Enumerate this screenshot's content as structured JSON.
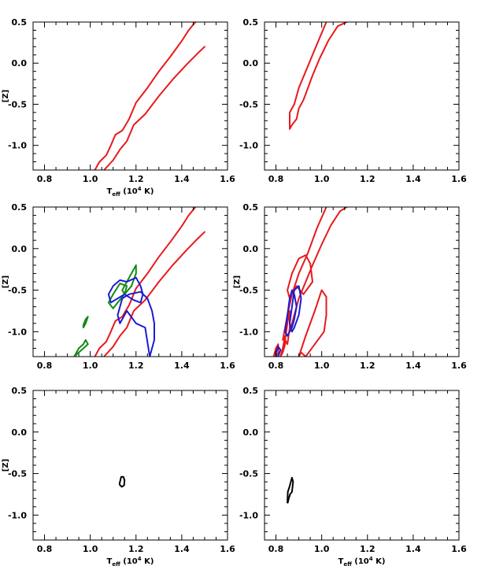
{
  "chart_data": [
    {
      "type": "line",
      "panel": "top-left",
      "xlim": [
        0.75,
        1.6
      ],
      "ylim": [
        -1.3,
        0.5
      ],
      "xticks": [
        "0.8",
        "1.0",
        "1.2",
        "1.4",
        "1.6"
      ],
      "yticks": [
        "0.5",
        "0.0",
        "-0.5",
        "-1.0"
      ],
      "xlabel": "T",
      "xlabel_sub": "eff",
      "xlabel_tail_open": " (10",
      "xlabel_sup": "4",
      "xlabel_tail_close": " K)",
      "ylabel": "[Z]",
      "series": [
        {
          "color": "#e8191c",
          "x": [
            1.02,
            1.04,
            1.07,
            1.09,
            1.11,
            1.14,
            1.17,
            1.2,
            1.25,
            1.3,
            1.35,
            1.4,
            1.43,
            1.46
          ],
          "y": [
            -1.3,
            -1.2,
            -1.12,
            -1.0,
            -0.87,
            -0.82,
            -0.68,
            -0.48,
            -0.3,
            -0.1,
            0.08,
            0.27,
            0.4,
            0.5
          ]
        },
        {
          "color": "#e8191c",
          "x": [
            1.06,
            1.1,
            1.13,
            1.16,
            1.19,
            1.24,
            1.3,
            1.36,
            1.42,
            1.47,
            1.5
          ],
          "y": [
            -1.3,
            -1.18,
            -1.05,
            -0.95,
            -0.75,
            -0.62,
            -0.4,
            -0.2,
            -0.02,
            0.12,
            0.2
          ]
        }
      ]
    },
    {
      "type": "line",
      "panel": "top-right",
      "xlim": [
        0.75,
        1.6
      ],
      "ylim": [
        -1.3,
        0.5
      ],
      "xticks": [
        "0.8",
        "1.0",
        "1.2",
        "1.4",
        "1.6"
      ],
      "yticks": [
        "0.5",
        "0.0",
        "-0.5",
        "-1.0"
      ],
      "series": [
        {
          "color": "#e8191c",
          "x": [
            0.86,
            0.86,
            0.88,
            0.9,
            0.93,
            0.96,
            0.99,
            1.02
          ],
          "y": [
            -0.8,
            -0.6,
            -0.5,
            -0.3,
            -0.1,
            0.1,
            0.3,
            0.5
          ]
        },
        {
          "color": "#e8191c",
          "x": [
            0.86,
            0.87,
            0.89,
            0.9,
            0.92,
            0.94,
            0.96,
            0.99,
            1.03,
            1.07,
            1.11
          ],
          "y": [
            -0.8,
            -0.75,
            -0.68,
            -0.55,
            -0.45,
            -0.3,
            -0.15,
            0.05,
            0.28,
            0.45,
            0.5
          ]
        }
      ]
    },
    {
      "type": "line",
      "panel": "middle-left",
      "xlim": [
        0.75,
        1.6
      ],
      "ylim": [
        -1.3,
        0.5
      ],
      "xticks": [
        "0.8",
        "1.0",
        "1.2",
        "1.4",
        "1.6"
      ],
      "yticks": [
        "0.5",
        "0.0",
        "-0.5",
        "-1.0"
      ],
      "xlabel": "",
      "ylabel": "[Z]",
      "series": [
        {
          "color": "#e8191c",
          "x": [
            1.02,
            1.04,
            1.07,
            1.09,
            1.11,
            1.14,
            1.17,
            1.2,
            1.25,
            1.3,
            1.35,
            1.4,
            1.43,
            1.46
          ],
          "y": [
            -1.3,
            -1.2,
            -1.12,
            -1.0,
            -0.87,
            -0.82,
            -0.68,
            -0.48,
            -0.3,
            -0.1,
            0.08,
            0.27,
            0.4,
            0.5
          ]
        },
        {
          "color": "#e8191c",
          "x": [
            1.06,
            1.1,
            1.13,
            1.16,
            1.19,
            1.24,
            1.3,
            1.36,
            1.42,
            1.47,
            1.5
          ],
          "y": [
            -1.3,
            -1.18,
            -1.05,
            -0.95,
            -0.75,
            -0.62,
            -0.4,
            -0.2,
            -0.02,
            0.12,
            0.2
          ]
        },
        {
          "color": "#138a13",
          "x": [
            0.93,
            0.95,
            0.97,
            0.98,
            0.99,
            0.95,
            0.93
          ],
          "y": [
            -1.3,
            -1.2,
            -1.15,
            -1.1,
            -1.15,
            -1.25,
            -1.3
          ]
        },
        {
          "color": "#138a13",
          "x": [
            0.97,
            0.98,
            0.99,
            0.98,
            0.97,
            0.97
          ],
          "y": [
            -0.92,
            -0.85,
            -0.82,
            -0.9,
            -0.95,
            -0.92
          ]
        },
        {
          "color": "#138a13",
          "x": [
            1.08,
            1.1,
            1.13,
            1.16,
            1.15,
            1.12,
            1.1,
            1.08
          ],
          "y": [
            -0.65,
            -0.55,
            -0.42,
            -0.45,
            -0.55,
            -0.65,
            -0.72,
            -0.65
          ]
        },
        {
          "color": "#138a13",
          "x": [
            1.14,
            1.17,
            1.2,
            1.2,
            1.18,
            1.15,
            1.14
          ],
          "y": [
            -0.5,
            -0.35,
            -0.2,
            -0.3,
            -0.45,
            -0.55,
            -0.5
          ]
        },
        {
          "color": "#1b1bd6",
          "x": [
            1.08,
            1.1,
            1.13,
            1.16,
            1.2,
            1.22,
            1.23,
            1.22,
            1.19,
            1.15,
            1.12,
            1.09,
            1.08
          ],
          "y": [
            -0.55,
            -0.45,
            -0.38,
            -0.4,
            -0.35,
            -0.45,
            -0.55,
            -0.65,
            -0.62,
            -0.55,
            -0.6,
            -0.65,
            -0.55
          ]
        },
        {
          "color": "#1b1bd6",
          "x": [
            1.12,
            1.14,
            1.17,
            1.22,
            1.25,
            1.27,
            1.28,
            1.28,
            1.26,
            1.24,
            1.2,
            1.16,
            1.13,
            1.12
          ],
          "y": [
            -0.8,
            -0.6,
            -0.55,
            -0.52,
            -0.6,
            -0.75,
            -0.9,
            -1.1,
            -1.3,
            -0.95,
            -0.9,
            -0.75,
            -0.9,
            -0.8
          ]
        }
      ]
    },
    {
      "type": "line",
      "panel": "middle-right",
      "xlim": [
        0.75,
        1.6
      ],
      "ylim": [
        -1.3,
        0.5
      ],
      "xticks": [
        "0.8",
        "1.0",
        "1.2",
        "1.4",
        "1.6"
      ],
      "yticks": [
        "0.5",
        "0.0",
        "-0.5",
        "-1.0"
      ],
      "ylabel": "[Z]",
      "series": [
        {
          "color": "#e8191c",
          "x": [
            0.83,
            0.85,
            0.87,
            0.9,
            0.94,
            0.98,
            1.02
          ],
          "y": [
            -1.1,
            -0.8,
            -0.55,
            -0.3,
            -0.05,
            0.25,
            0.5
          ]
        },
        {
          "color": "#e8191c",
          "x": [
            0.86,
            0.88,
            0.9,
            0.93,
            0.96,
            1.0,
            1.04,
            1.08,
            1.11
          ],
          "y": [
            -1.0,
            -0.8,
            -0.6,
            -0.4,
            -0.2,
            0.05,
            0.28,
            0.45,
            0.5
          ]
        },
        {
          "color": "#e8191c",
          "x": [
            0.85,
            0.87,
            0.9,
            0.93,
            0.95,
            0.96,
            0.92,
            0.89,
            0.86,
            0.85
          ],
          "y": [
            -0.5,
            -0.3,
            -0.12,
            -0.08,
            -0.18,
            -0.4,
            -0.55,
            -0.45,
            -0.6,
            -0.5
          ]
        },
        {
          "color": "#e8191c",
          "x": [
            0.9,
            0.93,
            0.97,
            1.0,
            1.02,
            1.02,
            1.01,
            0.97,
            0.93,
            0.91,
            0.9
          ],
          "y": [
            -1.3,
            -1.05,
            -0.75,
            -0.5,
            -0.58,
            -0.8,
            -1.0,
            -1.15,
            -1.3,
            -1.25,
            -1.3
          ]
        },
        {
          "color": "#e8191c",
          "x": [
            0.79,
            0.8,
            0.81,
            0.81,
            0.8,
            0.79
          ],
          "y": [
            -1.3,
            -1.2,
            -1.15,
            -1.25,
            -1.3,
            -1.3
          ]
        },
        {
          "color": "#e8191c",
          "x": [
            0.82,
            0.83,
            0.84,
            0.84,
            0.83,
            0.82
          ],
          "y": [
            -1.3,
            -1.25,
            -1.15,
            -1.05,
            -1.2,
            -1.3
          ]
        },
        {
          "color": "#e8191c",
          "x": [
            0.84,
            0.85,
            0.86,
            0.86,
            0.85,
            0.84
          ],
          "y": [
            -1.1,
            -0.9,
            -0.75,
            -0.95,
            -1.15,
            -1.1
          ]
        },
        {
          "color": "#1b1bd6",
          "x": [
            0.84,
            0.85,
            0.86,
            0.87,
            0.88,
            0.89,
            0.88,
            0.87,
            0.86,
            0.85,
            0.84
          ],
          "y": [
            -1.0,
            -0.8,
            -0.6,
            -0.5,
            -0.55,
            -0.7,
            -0.85,
            -0.95,
            -1.0,
            -1.05,
            -1.0
          ]
        },
        {
          "color": "#1b1bd6",
          "x": [
            0.86,
            0.87,
            0.88,
            0.9,
            0.91,
            0.9,
            0.88,
            0.87,
            0.86
          ],
          "y": [
            -0.9,
            -0.7,
            -0.5,
            -0.45,
            -0.6,
            -0.8,
            -0.95,
            -1.0,
            -0.9
          ]
        },
        {
          "color": "#1b1bd6",
          "x": [
            0.8,
            0.81,
            0.82,
            0.81,
            0.8,
            0.8
          ],
          "y": [
            -1.25,
            -1.18,
            -1.22,
            -1.3,
            -1.3,
            -1.25
          ]
        }
      ]
    },
    {
      "type": "line",
      "panel": "bottom-left",
      "xlim": [
        0.75,
        1.6
      ],
      "ylim": [
        -1.3,
        0.5
      ],
      "xticks": [
        "0.8",
        "1.0",
        "1.2",
        "1.4",
        "1.6"
      ],
      "yticks": [
        "0.5",
        "0.0",
        "-0.5",
        "-1.0"
      ],
      "xlabel": "T",
      "xlabel_sub": "eff",
      "xlabel_tail_open": " (10",
      "xlabel_sup": "4",
      "xlabel_tail_close": " K)",
      "ylabel": "[Z]",
      "series": [
        {
          "color": "#000000",
          "x": [
            1.13,
            1.135,
            1.145,
            1.15,
            1.148,
            1.138,
            1.13,
            1.128,
            1.13
          ],
          "y": [
            -0.6,
            -0.54,
            -0.54,
            -0.58,
            -0.64,
            -0.66,
            -0.64,
            -0.62,
            -0.6
          ]
        }
      ]
    },
    {
      "type": "line",
      "panel": "bottom-right",
      "xlim": [
        0.75,
        1.6
      ],
      "ylim": [
        -1.3,
        0.5
      ],
      "xticks": [
        "0.8",
        "1.0",
        "1.2",
        "1.4",
        "1.6"
      ],
      "yticks": [
        "0.5",
        "0.0",
        "-0.5",
        "-1.0"
      ],
      "xlabel": "T",
      "xlabel_sub": "eff",
      "xlabel_tail_open": " (10",
      "xlabel_sup": "4",
      "xlabel_tail_close": " K)",
      "series": [
        {
          "color": "#000000",
          "x": [
            0.85,
            0.852,
            0.86,
            0.87,
            0.875,
            0.87,
            0.862,
            0.856,
            0.852,
            0.85
          ],
          "y": [
            -0.85,
            -0.72,
            -0.65,
            -0.55,
            -0.6,
            -0.72,
            -0.75,
            -0.8,
            -0.85,
            -0.85
          ]
        }
      ]
    }
  ]
}
